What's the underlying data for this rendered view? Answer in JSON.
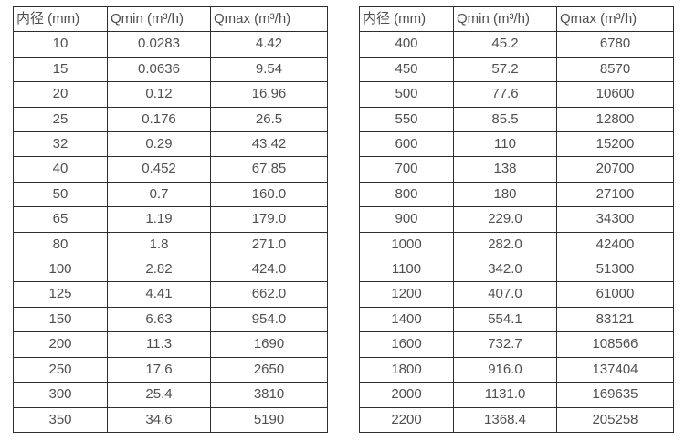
{
  "colors": {
    "background": "#ffffff",
    "border": "#2e2e2e",
    "text": "#4f4f4f"
  },
  "tables": [
    {
      "name": "small-diameter-flow-ranges",
      "headers": [
        "内径 (mm)",
        "Qmin (m³/h)",
        "Qmax (m³/h)"
      ],
      "rows": [
        [
          "10",
          "0.0283",
          "4.42"
        ],
        [
          "15",
          "0.0636",
          "9.54"
        ],
        [
          "20",
          "0.12",
          "16.96"
        ],
        [
          "25",
          "0.176",
          "26.5"
        ],
        [
          "32",
          "0.29",
          "43.42"
        ],
        [
          "40",
          "0.452",
          "67.85"
        ],
        [
          "50",
          "0.7",
          "160.0"
        ],
        [
          "65",
          "1.19",
          "179.0"
        ],
        [
          "80",
          "1.8",
          "271.0"
        ],
        [
          "100",
          "2.82",
          "424.0"
        ],
        [
          "125",
          "4.41",
          "662.0"
        ],
        [
          "150",
          "6.63",
          "954.0"
        ],
        [
          "200",
          "11.3",
          "1690"
        ],
        [
          "250",
          "17.6",
          "2650"
        ],
        [
          "300",
          "25.4",
          "3810"
        ],
        [
          "350",
          "34.6",
          "5190"
        ]
      ]
    },
    {
      "name": "large-diameter-flow-ranges",
      "headers": [
        "内径 (mm)",
        "Qmin (m³/h)",
        "Qmax (m³/h)"
      ],
      "rows": [
        [
          "400",
          "45.2",
          "6780"
        ],
        [
          "450",
          "57.2",
          "8570"
        ],
        [
          "500",
          "77.6",
          "10600"
        ],
        [
          "550",
          "85.5",
          "12800"
        ],
        [
          "600",
          "110",
          "15200"
        ],
        [
          "700",
          "138",
          "20700"
        ],
        [
          "800",
          "180",
          "27100"
        ],
        [
          "900",
          "229.0",
          "34300"
        ],
        [
          "1000",
          "282.0",
          "42400"
        ],
        [
          "1100",
          "342.0",
          "51300"
        ],
        [
          "1200",
          "407.0",
          "61000"
        ],
        [
          "1400",
          "554.1",
          "83121"
        ],
        [
          "1600",
          "732.7",
          "108566"
        ],
        [
          "1800",
          "916.0",
          "137404"
        ],
        [
          "2000",
          "1131.0",
          "169635"
        ],
        [
          "2200",
          "1368.4",
          "205258"
        ]
      ]
    }
  ]
}
